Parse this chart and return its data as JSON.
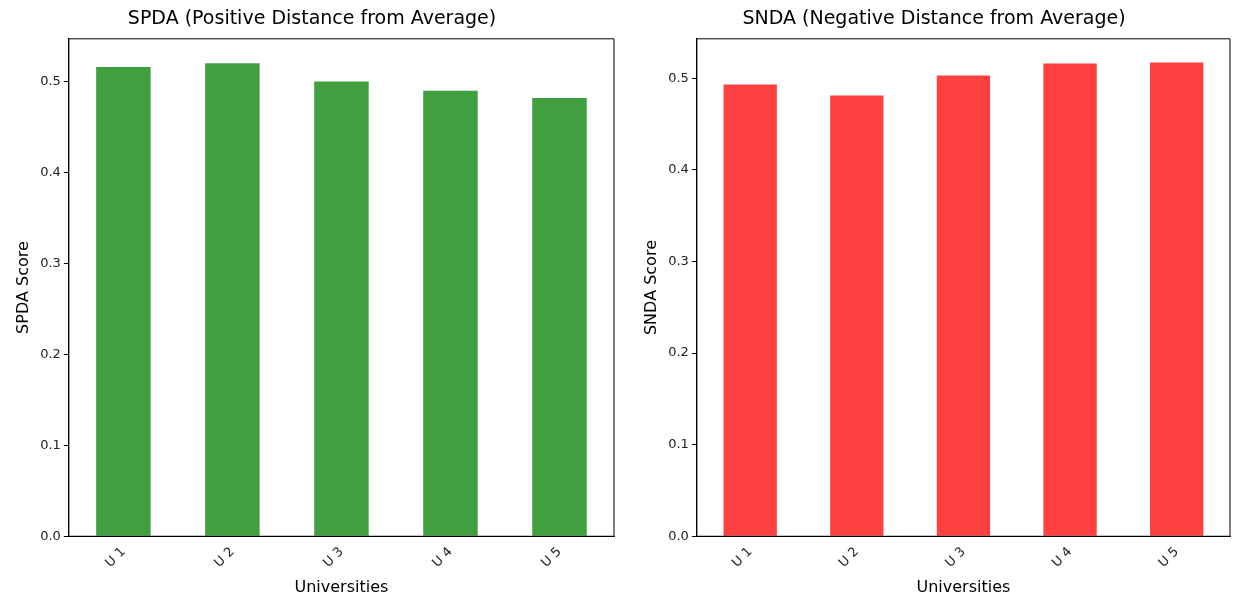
{
  "chart_data": [
    {
      "type": "bar",
      "title": "SPDA (Positive Distance from Average)",
      "xlabel": "Universities",
      "ylabel": "SPDA Score",
      "categories": [
        "U 1",
        "U 2",
        "U 3",
        "U 4",
        "U 5"
      ],
      "values": [
        0.516,
        0.52,
        0.5,
        0.49,
        0.482
      ],
      "color": "#40a040",
      "ylim": [
        0,
        0.547
      ],
      "yticks": [
        {
          "value": 0,
          "label": "0.0"
        },
        0.1,
        0.2,
        0.3,
        0.4,
        0.5
      ],
      "grid": false
    },
    {
      "type": "bar",
      "title": "SNDA (Negative Distance from Average)",
      "xlabel": "Universities",
      "ylabel": "SNDA Score",
      "categories": [
        "U 1",
        "U 2",
        "U 3",
        "U 4",
        "U 5"
      ],
      "values": [
        0.493,
        0.481,
        0.503,
        0.516,
        0.517
      ],
      "color": "#ff4040",
      "ylim": [
        0,
        0.543
      ],
      "yticks": [
        {
          "value": 0,
          "label": "0.0"
        },
        0.1,
        0.2,
        0.3,
        0.4,
        0.5
      ],
      "grid": false
    }
  ]
}
